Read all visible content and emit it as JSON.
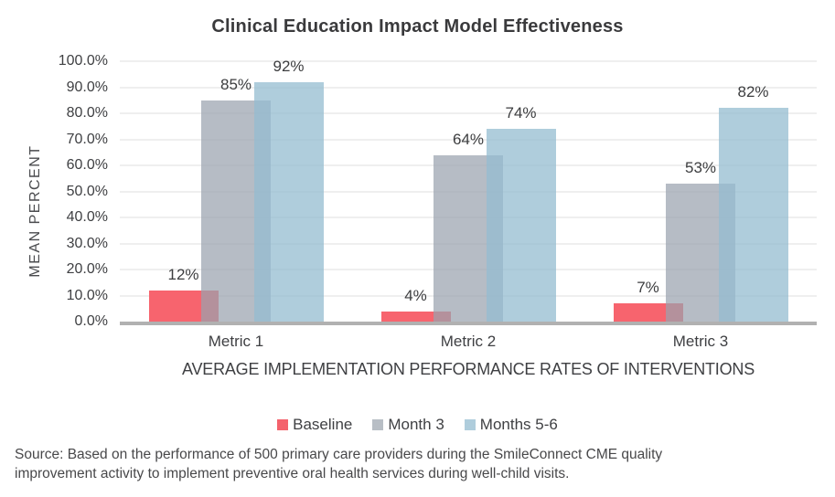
{
  "chart_data": {
    "type": "bar",
    "title": "Clinical Education Impact Model Effectiveness",
    "categories": [
      "Metric 1",
      "Metric 2",
      "Metric 3"
    ],
    "series": [
      {
        "name": "Baseline",
        "values": [
          12,
          4,
          7
        ],
        "color": "#F4626C",
        "fill": "rgba(247,100,110,1)"
      },
      {
        "name": "Month 3",
        "values": [
          85,
          64,
          53
        ],
        "color": "#B8BEC5",
        "fill": "rgba(154,162,174,0.72)"
      },
      {
        "name": "Months 5-6",
        "values": [
          92,
          74,
          82
        ],
        "color": "#AFCDDC",
        "fill": "rgba(148,188,208,0.75)"
      }
    ],
    "xlabel": "AVERAGE IMPLEMENTATION PERFORMANCE RATES OF INTERVENTIONS",
    "ylabel": "MEAN PERCENT",
    "ylim": [
      0,
      100
    ],
    "ytick_step": 10,
    "ytick_format": "one_decimal_percent",
    "data_label_format": "integer_percent",
    "grid": true,
    "legend_position": "bottom",
    "overlapping_bars": true
  },
  "colors": {
    "gridline": "#EFEFEF",
    "axis_line": "#B1B1B1",
    "title_text": "#3A3A3C",
    "label_text": "#3F4043",
    "source_text": "#48484A"
  },
  "source_note": "Source: Based on the performance of 500 primary care providers during the SmileConnect CME quality improvement activity to implement preventive oral health services during well-child visits."
}
